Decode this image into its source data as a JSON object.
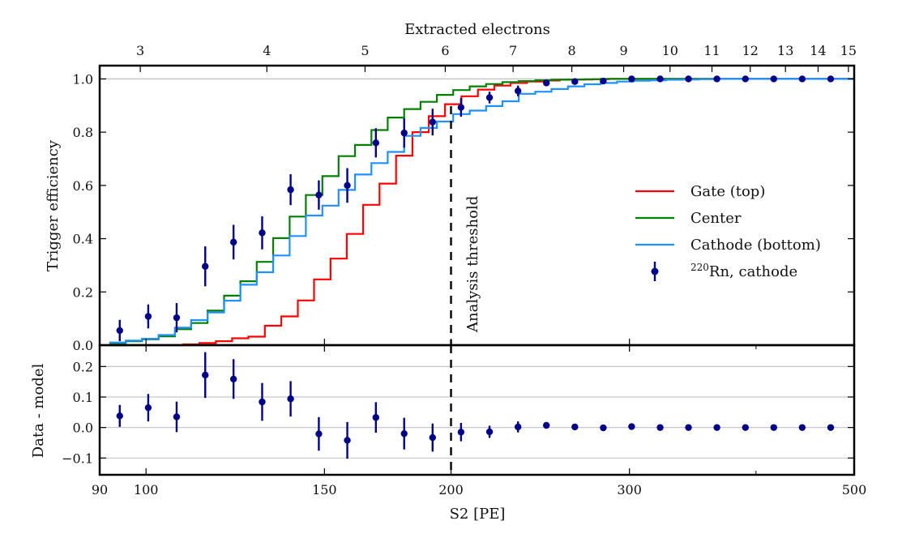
{
  "chart_data": {
    "type": "line",
    "title": "",
    "xscale": "log",
    "xlabel": "S2 [PE]",
    "xlim": [
      90,
      500
    ],
    "xticks": [
      90,
      100,
      150,
      200,
      300,
      500
    ],
    "xtick_labels": [
      "90",
      "100",
      "150",
      "200",
      "300",
      "500"
    ],
    "top_axis": {
      "label": "Extracted electrons",
      "pe_per_electron": 32.9,
      "ticks": [
        3,
        4,
        5,
        6,
        7,
        8,
        9,
        10,
        11,
        12,
        13,
        14,
        15
      ],
      "tick_labels": [
        "3",
        "4",
        "5",
        "6",
        "7",
        "8",
        "9",
        "10",
        "11",
        "12",
        "13",
        "14",
        "15"
      ]
    },
    "panels": [
      {
        "name": "efficiency",
        "ylabel": "Trigger efficiency",
        "ylim": [
          0.0,
          1.05
        ],
        "yticks": [
          0.0,
          0.2,
          0.4,
          0.6,
          0.8,
          1.0
        ],
        "ytick_labels": [
          "0.0",
          "0.2",
          "0.4",
          "0.6",
          "0.8",
          "1.0"
        ],
        "hline": 1.0,
        "step_bin_edges": [
          92.0,
          93.7,
          95.5,
          97.3,
          99.1,
          101.0,
          102.9,
          104.8,
          106.8,
          108.8,
          110.8,
          112.9,
          115.0,
          117.2,
          119.4,
          121.6,
          123.9,
          126.2,
          128.6,
          131.0,
          133.5,
          136.0,
          138.6,
          141.2,
          143.8,
          146.5,
          149.3,
          152.1,
          154.9,
          157.8,
          160.8,
          163.8,
          166.9,
          170.0,
          173.2,
          176.5,
          179.8,
          183.2,
          186.6,
          190.1,
          193.7,
          197.3,
          201.0,
          204.8,
          208.7,
          212.6,
          216.6,
          220.7,
          224.8,
          229.0,
          233.3,
          237.7,
          242.2,
          246.7,
          251.3,
          256.0,
          260.9,
          265.8,
          270.8,
          275.9,
          281.0,
          286.3,
          291.7,
          297.2,
          302.7,
          308.4,
          314.2,
          320.1,
          326.1,
          332.2,
          338.5,
          344.8,
          351.3,
          357.9,
          364.6,
          371.5,
          378.4,
          385.6,
          392.8,
          400.2,
          407.7,
          415.4,
          423.2,
          431.2,
          439.3,
          447.6,
          456.0,
          464.6,
          473.3,
          482.2,
          491.3,
          500.5
        ],
        "series": [
          {
            "name": "Gate (top)",
            "color": "#ff0000",
            "kind": "step",
            "values": [
              0.0,
              0.0,
              0.0,
              0.0,
              0.0,
              0.0,
              0.0,
              0.0,
              0.0,
              0.003,
              0.003,
              0.008,
              0.008,
              0.015,
              0.015,
              0.026,
              0.026,
              0.032,
              0.032,
              0.073,
              0.073,
              0.108,
              0.108,
              0.168,
              0.168,
              0.247,
              0.247,
              0.325,
              0.325,
              0.418,
              0.418,
              0.527,
              0.527,
              0.607,
              0.607,
              0.712,
              0.712,
              0.8,
              0.8,
              0.86,
              0.86,
              0.905,
              0.905,
              0.935,
              0.935,
              0.96,
              0.96,
              0.975,
              0.975,
              0.985,
              0.985,
              0.99,
              0.99,
              0.994,
              0.994,
              0.997,
              0.997,
              0.998,
              0.998,
              0.999,
              0.999,
              1.0,
              1.0,
              1.0,
              1.0,
              1.0,
              1.0,
              1.0,
              1.0,
              1.0,
              1.0,
              1.0,
              1.0,
              1.0,
              1.0,
              1.0,
              1.0,
              1.0,
              1.0,
              1.0,
              1.0,
              1.0,
              1.0,
              1.0,
              1.0,
              1.0,
              1.0,
              1.0,
              1.0,
              1.0,
              1.0
            ]
          },
          {
            "name": "Center",
            "color": "#008000",
            "kind": "step",
            "values": [
              0.008,
              0.008,
              0.015,
              0.015,
              0.022,
              0.022,
              0.033,
              0.033,
              0.06,
              0.06,
              0.083,
              0.083,
              0.13,
              0.13,
              0.186,
              0.186,
              0.24,
              0.24,
              0.313,
              0.313,
              0.402,
              0.402,
              0.483,
              0.483,
              0.564,
              0.564,
              0.635,
              0.635,
              0.71,
              0.71,
              0.752,
              0.752,
              0.808,
              0.808,
              0.855,
              0.855,
              0.887,
              0.887,
              0.914,
              0.914,
              0.94,
              0.94,
              0.958,
              0.958,
              0.972,
              0.972,
              0.981,
              0.981,
              0.988,
              0.988,
              0.992,
              0.992,
              0.995,
              0.995,
              0.997,
              0.997,
              0.998,
              0.998,
              0.999,
              0.999,
              1.0,
              1.0,
              1.0,
              1.0,
              1.0,
              1.0,
              1.0,
              1.0,
              1.0,
              1.0,
              1.0,
              1.0,
              1.0,
              1.0,
              1.0,
              1.0,
              1.0,
              1.0,
              1.0,
              1.0,
              1.0,
              1.0,
              1.0,
              1.0,
              1.0,
              1.0,
              1.0,
              1.0,
              1.0,
              1.0,
              1.0
            ]
          },
          {
            "name": "Cathode (bottom)",
            "color": "#1e90ff",
            "kind": "step",
            "values": [
              0.01,
              0.01,
              0.017,
              0.017,
              0.024,
              0.024,
              0.038,
              0.038,
              0.066,
              0.066,
              0.094,
              0.094,
              0.123,
              0.123,
              0.167,
              0.167,
              0.227,
              0.227,
              0.274,
              0.274,
              0.337,
              0.337,
              0.41,
              0.41,
              0.487,
              0.487,
              0.524,
              0.524,
              0.583,
              0.583,
              0.641,
              0.641,
              0.684,
              0.684,
              0.726,
              0.726,
              0.786,
              0.786,
              0.816,
              0.816,
              0.84,
              0.84,
              0.868,
              0.868,
              0.881,
              0.881,
              0.898,
              0.898,
              0.916,
              0.916,
              0.944,
              0.944,
              0.952,
              0.952,
              0.962,
              0.962,
              0.972,
              0.972,
              0.98,
              0.98,
              0.985,
              0.985,
              0.99,
              0.99,
              0.993,
              0.993,
              0.995,
              0.995,
              0.997,
              0.997,
              0.998,
              0.998,
              0.999,
              0.999,
              1.0,
              1.0,
              1.0,
              1.0,
              1.0,
              1.0,
              1.0,
              1.0,
              1.0,
              1.0,
              1.0,
              1.0,
              1.0,
              1.0,
              1.0,
              1.0,
              1.0
            ]
          },
          {
            "name": "220Rn, cathode",
            "legend_label_sup": "220",
            "legend_label_rest": "Rn, cathode",
            "color": "#00008b",
            "kind": "errorbar",
            "x": [
              94.2,
              100.5,
              107.2,
              114.4,
              122.0,
              130.2,
              138.9,
              148.1,
              158.0,
              168.6,
              179.8,
              191.8,
              204.6,
              218.3,
              232.9,
              248.4,
              265.0,
              282.7,
              301.5,
              321.7,
              343.1,
              366.0,
              390.5,
              416.5,
              444.3,
              474.0
            ],
            "y": [
              0.055,
              0.108,
              0.103,
              0.296,
              0.387,
              0.422,
              0.584,
              0.564,
              0.6,
              0.76,
              0.797,
              0.838,
              0.893,
              0.93,
              0.955,
              0.985,
              0.99,
              0.992,
              1.0,
              1.0,
              1.0,
              1.0,
              1.0,
              1.0,
              1.0,
              1.0
            ],
            "yerr": [
              0.04,
              0.045,
              0.055,
              0.075,
              0.065,
              0.062,
              0.058,
              0.055,
              0.065,
              0.055,
              0.055,
              0.05,
              0.035,
              0.022,
              0.02,
              0.01,
              0.008,
              0.006,
              0.004,
              0.003,
              0.003,
              0.002,
              0.002,
              0.002,
              0.002,
              0.002
            ]
          }
        ],
        "legend_position": "center-right",
        "annotations": [
          {
            "text": "Analysis threshold",
            "x": 200,
            "style": "dashed-vertical-line",
            "rotation": "vertical"
          }
        ]
      },
      {
        "name": "residuals",
        "ylabel": "Data - model",
        "ylim": [
          -0.155,
          0.27
        ],
        "yticks": [
          -0.1,
          0.0,
          0.1,
          0.2
        ],
        "ytick_labels": [
          "−0.1",
          "0.0",
          "0.1",
          "0.2"
        ],
        "grid": true,
        "series": [
          {
            "name": "Data - model",
            "color": "#00008b",
            "kind": "errorbar",
            "x": [
              94.2,
              100.5,
              107.2,
              114.4,
              122.0,
              130.2,
              138.9,
              148.1,
              158.0,
              168.6,
              179.8,
              191.8,
              204.6,
              218.3,
              232.9,
              248.4,
              265.0,
              282.7,
              301.5,
              321.7,
              343.1,
              366.0,
              390.5,
              416.5,
              444.3,
              474.0
            ],
            "y": [
              0.038,
              0.065,
              0.035,
              0.172,
              0.159,
              0.084,
              0.094,
              -0.021,
              -0.042,
              0.033,
              -0.02,
              -0.033,
              -0.015,
              -0.014,
              0.002,
              0.007,
              0.002,
              -0.001,
              0.003,
              0.0,
              0.0,
              0.0,
              0.0,
              0.0,
              0.0,
              0.0
            ],
            "yerr": [
              0.036,
              0.045,
              0.05,
              0.075,
              0.065,
              0.062,
              0.058,
              0.055,
              0.06,
              0.05,
              0.052,
              0.046,
              0.03,
              0.02,
              0.018,
              0.01,
              0.008,
              0.006,
              0.004,
              0.003,
              0.003,
              0.002,
              0.002,
              0.002,
              0.002,
              0.002
            ]
          }
        ],
        "annotations": [
          {
            "x": 200,
            "style": "dashed-vertical-line"
          }
        ]
      }
    ]
  }
}
